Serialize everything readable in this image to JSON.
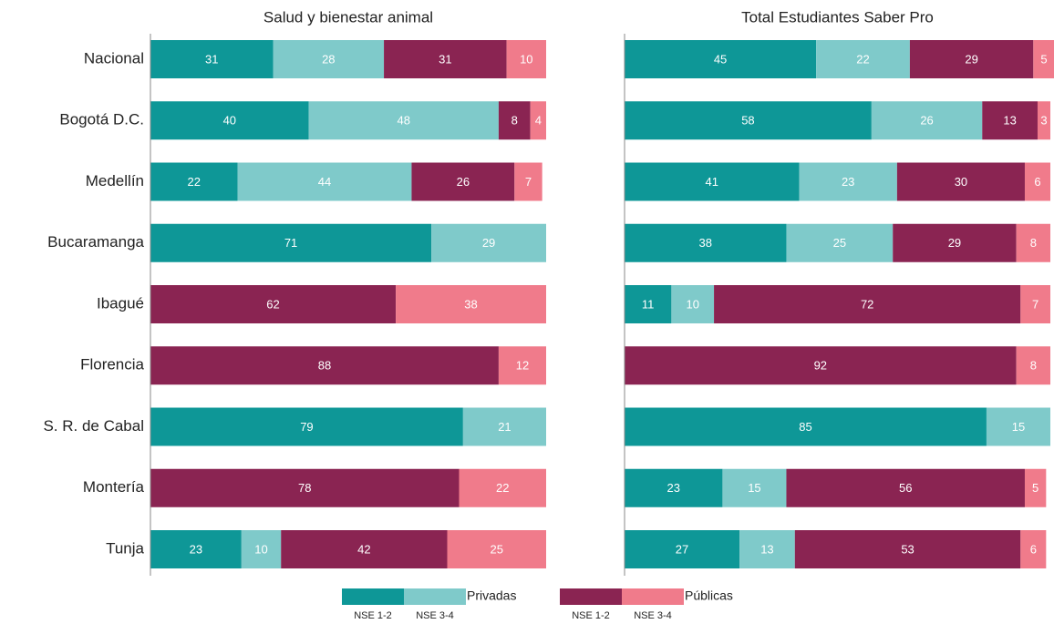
{
  "chart_data": [
    {
      "type": "stacked_bar",
      "orientation": "horizontal",
      "title": "Salud y bienestar animal",
      "categories": [
        "Nacional",
        "Bogotá D.C.",
        "Medellín",
        "Bucaramanga",
        "Ibagué",
        "Florencia",
        "S. R. de Cabal",
        "Montería",
        "Tunja"
      ],
      "xlim": [
        0,
        100
      ],
      "series": [
        {
          "name": "NSE 1-2",
          "group": "Privadas",
          "color": "#0e9797",
          "values": [
            31,
            40,
            22,
            71,
            null,
            null,
            79,
            null,
            23
          ]
        },
        {
          "name": "NSE 3-4",
          "group": "Privadas",
          "color": "#7fcaca",
          "values": [
            28,
            48,
            44,
            29,
            null,
            null,
            21,
            null,
            10
          ]
        },
        {
          "name": "NSE 1-2",
          "group": "Públicas",
          "color": "#8a2452",
          "values": [
            31,
            8,
            26,
            null,
            62,
            88,
            null,
            78,
            42
          ]
        },
        {
          "name": "NSE 3-4",
          "group": "Públicas",
          "color": "#f07b8b",
          "values": [
            10,
            4,
            7,
            null,
            38,
            12,
            null,
            22,
            25
          ]
        }
      ]
    },
    {
      "type": "stacked_bar",
      "orientation": "horizontal",
      "title": "Total Estudiantes Saber Pro",
      "categories": [
        "Nacional",
        "Bogotá D.C.",
        "Medellín",
        "Bucaramanga",
        "Ibagué",
        "Florencia",
        "S. R. de Cabal",
        "Montería",
        "Tunja"
      ],
      "xlim": [
        0,
        100
      ],
      "series": [
        {
          "name": "NSE 1-2",
          "group": "Privadas",
          "color": "#0e9797",
          "values": [
            45,
            58,
            41,
            38,
            11,
            null,
            85,
            23,
            27
          ]
        },
        {
          "name": "NSE 3-4",
          "group": "Privadas",
          "color": "#7fcaca",
          "values": [
            22,
            26,
            23,
            25,
            10,
            null,
            15,
            15,
            13
          ]
        },
        {
          "name": "NSE 1-2",
          "group": "Públicas",
          "color": "#8a2452",
          "values": [
            29,
            13,
            30,
            29,
            72,
            92,
            null,
            56,
            53
          ]
        },
        {
          "name": "NSE 3-4",
          "group": "Públicas",
          "color": "#f07b8b",
          "values": [
            5,
            3,
            6,
            8,
            7,
            8,
            null,
            5,
            6
          ]
        }
      ]
    }
  ]
}
